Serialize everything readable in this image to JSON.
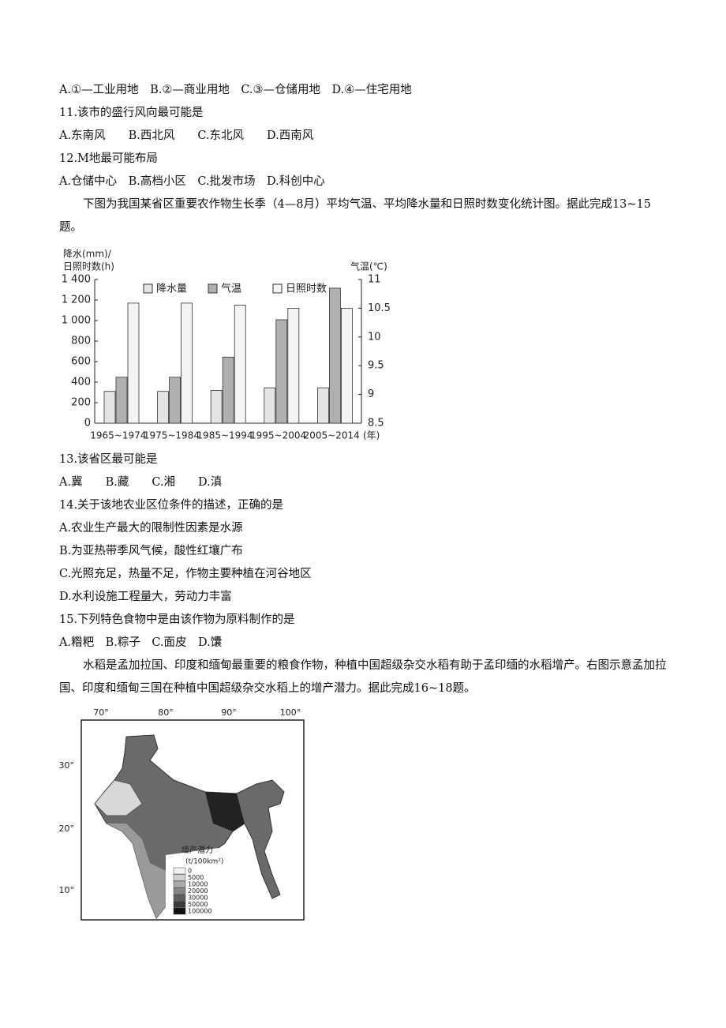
{
  "lines": [
    "A.①—工业用地　B.②—商业用地　C.③—仓储用地　D.④—住宅用地",
    "11.该市的盛行风向最可能是",
    "A.东南风　　B.西北风　　C.东北风　　D.西南风",
    "12.M地最可能布局",
    "A.仓储中心　B.高档小区　C.批发市场　D.科创中心",
    "下图为我国某省区重要农作物生长季（4—8月）平均气温、平均降水量和日照时数变化统计图。据此完成13~15题。",
    "13.该省区最可能是",
    "A.冀　　B.藏　　C.湘　　D.滇",
    "14.关于该地农业区位条件的描述，正确的是",
    "A.农业生产最大的限制性因素是水源",
    "B.为亚热带季风气候，酸性红壤广布",
    "C.光照充足，热量不足，作物主要种植在河谷地区",
    "D.水利设施工程量大，劳动力丰富",
    "15.下列特色食物中是由该作物为原料制作的是",
    "A.糌粑　B.粽子　C.面皮　D.馕",
    "水稻是孟加拉国、印度和缅甸最重要的粮食作物，种植中国超级杂交水稻有助于孟印缅的水稻增产。右图示意孟加拉国、印度和缅甸三国在种植中国超级杂交水稻上的增产潜力。据此完成16~18题。"
  ],
  "chart_data": {
    "type": "bar",
    "ylabel": [
      "降水(mm)/",
      "日照时数(h)"
    ],
    "y2label": "气温(℃)",
    "xlabel": "(年)",
    "categories": [
      "1965~1974",
      "1975~1984",
      "1985~1994",
      "1995~2004",
      "2005~2014"
    ],
    "series": [
      {
        "name": "降水量",
        "color": "#e4e4e4",
        "values": [
          310,
          310,
          320,
          345,
          345
        ]
      },
      {
        "name": "气温",
        "color": "#b0b0b0",
        "axis": "y2",
        "values": [
          9.3,
          9.3,
          9.65,
          10.3,
          10.85
        ]
      },
      {
        "name": "日照时数",
        "color": "#f4f4f4",
        "values": [
          1170,
          1170,
          1150,
          1120,
          1120
        ]
      }
    ],
    "ylim": [
      0,
      1400
    ],
    "yticks": [
      0,
      200,
      400,
      600,
      800,
      {
        "value": 1000,
        "label": "1 000"
      },
      {
        "value": 1200,
        "label": "1 200"
      },
      {
        "value": 1400,
        "label": "1 400"
      }
    ],
    "y2lim": [
      8.5,
      11
    ],
    "y2ticks": [
      8.5,
      9,
      9.5,
      10,
      10.5,
      11
    ]
  },
  "map": {
    "lon_labels": [
      "70°",
      "80°",
      "90°",
      "100°"
    ],
    "lat_labels": [
      "30°",
      "20°",
      "10°"
    ],
    "legend_title": "增产潜力",
    "legend_unit": "(t/100km²)",
    "legend_labels": [
      0,
      5000,
      10000,
      20000,
      30000,
      50000,
      100000
    ]
  }
}
